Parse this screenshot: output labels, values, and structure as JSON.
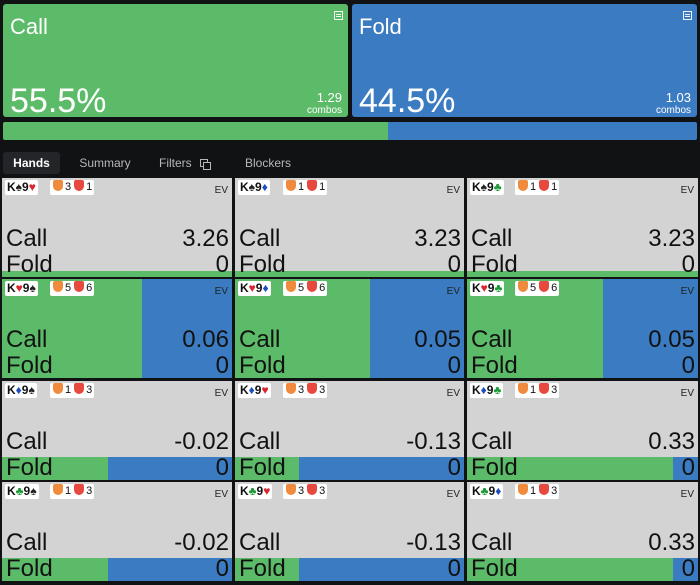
{
  "colors": {
    "call": "#5cbb68",
    "fold": "#3b7bc2"
  },
  "summary": {
    "call": {
      "title": "Call",
      "pct": "55.5%",
      "combos": "1.29",
      "combos_label": "combos",
      "fraction": 0.555
    },
    "fold": {
      "title": "Fold",
      "pct": "44.5%",
      "combos": "1.03",
      "combos_label": "combos",
      "fraction": 0.445
    }
  },
  "tabs": [
    "Hands",
    "Summary",
    "Filters",
    "Blockers"
  ],
  "active_tab": "Hands",
  "ev_label": "EV",
  "action_labels": {
    "call": "Call",
    "fold": "Fold"
  },
  "cells": [
    {
      "hand": [
        [
          "K",
          "♠"
        ],
        [
          "9",
          "♥"
        ]
      ],
      "blockers": [
        "3",
        "1"
      ],
      "call_ev": "3.26",
      "fold_ev": "0",
      "call_freq": 1.0
    },
    {
      "hand": [
        [
          "K",
          "♠"
        ],
        [
          "9",
          "♦"
        ]
      ],
      "blockers": [
        "1",
        "1"
      ],
      "call_ev": "3.23",
      "fold_ev": "0",
      "call_freq": 1.0
    },
    {
      "hand": [
        [
          "K",
          "♠"
        ],
        [
          "9",
          "♣"
        ]
      ],
      "blockers": [
        "1",
        "1"
      ],
      "call_ev": "3.23",
      "fold_ev": "0",
      "call_freq": 1.0
    },
    {
      "hand": [
        [
          "K",
          "♥"
        ],
        [
          "9",
          "♠"
        ]
      ],
      "blockers": [
        "5",
        "6"
      ],
      "call_ev": "0.06",
      "fold_ev": "0",
      "call_freq": 0.61
    },
    {
      "hand": [
        [
          "K",
          "♥"
        ],
        [
          "9",
          "♦"
        ]
      ],
      "blockers": [
        "5",
        "6"
      ],
      "call_ev": "0.05",
      "fold_ev": "0",
      "call_freq": 0.59
    },
    {
      "hand": [
        [
          "K",
          "♥"
        ],
        [
          "9",
          "♣"
        ]
      ],
      "blockers": [
        "5",
        "6"
      ],
      "call_ev": "0.05",
      "fold_ev": "0",
      "call_freq": 0.59
    },
    {
      "hand": [
        [
          "K",
          "♦"
        ],
        [
          "9",
          "♠"
        ]
      ],
      "blockers": [
        "1",
        "3"
      ],
      "call_ev": "-0.02",
      "fold_ev": "0",
      "call_freq": 0.46
    },
    {
      "hand": [
        [
          "K",
          "♦"
        ],
        [
          "9",
          "♥"
        ]
      ],
      "blockers": [
        "3",
        "3"
      ],
      "call_ev": "-0.13",
      "fold_ev": "0",
      "call_freq": 0.28
    },
    {
      "hand": [
        [
          "K",
          "♦"
        ],
        [
          "9",
          "♣"
        ]
      ],
      "blockers": [
        "1",
        "3"
      ],
      "call_ev": "0.33",
      "fold_ev": "0",
      "call_freq": 0.89
    },
    {
      "hand": [
        [
          "K",
          "♣"
        ],
        [
          "9",
          "♠"
        ]
      ],
      "blockers": [
        "1",
        "3"
      ],
      "call_ev": "-0.02",
      "fold_ev": "0",
      "call_freq": 0.46
    },
    {
      "hand": [
        [
          "K",
          "♣"
        ],
        [
          "9",
          "♥"
        ]
      ],
      "blockers": [
        "3",
        "3"
      ],
      "call_ev": "-0.13",
      "fold_ev": "0",
      "call_freq": 0.28
    },
    {
      "hand": [
        [
          "K",
          "♣"
        ],
        [
          "9",
          "♦"
        ]
      ],
      "blockers": [
        "1",
        "3"
      ],
      "call_ev": "0.33",
      "fold_ev": "0",
      "call_freq": 0.89
    }
  ]
}
